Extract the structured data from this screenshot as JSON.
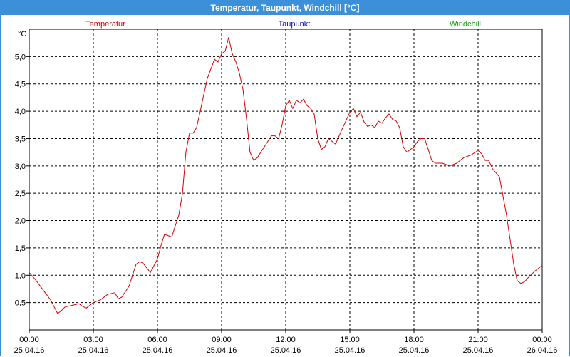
{
  "window": {
    "title": "Temperatur, Taupunkt, Windchill [°C]",
    "title_bar_color": "#3c8fd9"
  },
  "chart_data": {
    "type": "line",
    "title": "Temperatur, Taupunkt, Windchill [°C]",
    "ylabel": "°C",
    "xlabel": "",
    "ylim": [
      0,
      5.5
    ],
    "xlim_hours": [
      0,
      24
    ],
    "grid": true,
    "legend_placement": "top",
    "y_ticks": [
      "0,5",
      "1,0",
      "1,5",
      "2,0",
      "2,5",
      "3,0",
      "3,5",
      "4,0",
      "4,5",
      "5,0"
    ],
    "x_ticks": [
      {
        "time": "00:00",
        "date": "25.04.16"
      },
      {
        "time": "03:00",
        "date": "25.04.16"
      },
      {
        "time": "06:00",
        "date": "25.04.16"
      },
      {
        "time": "09:00",
        "date": "25.04.16"
      },
      {
        "time": "12:00",
        "date": "25.04.16"
      },
      {
        "time": "15:00",
        "date": "25.04.16"
      },
      {
        "time": "18:00",
        "date": "25.04.16"
      },
      {
        "time": "21:00",
        "date": "25.04.16"
      },
      {
        "time": "00:00",
        "date": "26.04.16"
      }
    ],
    "legend": [
      {
        "name": "Temperatur",
        "color": "#d40000"
      },
      {
        "name": "Taupunkt",
        "color": "#1010b0"
      },
      {
        "name": "Windchill",
        "color": "#10a010"
      }
    ],
    "series": [
      {
        "name": "Temperatur",
        "color": "#d40000",
        "x": [
          0,
          0.33,
          0.67,
          1,
          1.17,
          1.33,
          1.5,
          1.67,
          2,
          2.33,
          2.5,
          2.67,
          3,
          3.33,
          3.67,
          4,
          4.17,
          4.33,
          4.67,
          5,
          5.17,
          5.33,
          5.67,
          6,
          6.17,
          6.33,
          6.67,
          6.83,
          7,
          7.17,
          7.33,
          7.5,
          7.67,
          7.83,
          8,
          8.33,
          8.67,
          8.83,
          9,
          9.17,
          9.33,
          9.5,
          9.67,
          9.83,
          10,
          10.17,
          10.33,
          10.5,
          10.67,
          10.83,
          11,
          11.33,
          11.5,
          11.67,
          11.83,
          12,
          12.17,
          12.33,
          12.5,
          12.67,
          12.83,
          13,
          13.17,
          13.33,
          13.5,
          13.67,
          13.83,
          14,
          14.33,
          14.5,
          14.67,
          15,
          15.17,
          15.33,
          15.5,
          15.67,
          15.83,
          16,
          16.17,
          16.33,
          16.5,
          16.67,
          16.83,
          17,
          17.17,
          17.33,
          17.5,
          17.67,
          17.83,
          18,
          18.17,
          18.33,
          18.5,
          18.67,
          18.83,
          19,
          19.33,
          19.67,
          20,
          20.33,
          20.67,
          21,
          21.17,
          21.33,
          21.5,
          21.67,
          22,
          22.33,
          22.67,
          22.83,
          23,
          23.17,
          23.33,
          23.67,
          24
        ],
        "values": [
          1.05,
          0.9,
          0.72,
          0.55,
          0.42,
          0.3,
          0.35,
          0.42,
          0.45,
          0.48,
          0.43,
          0.4,
          0.5,
          0.55,
          0.65,
          0.68,
          0.57,
          0.6,
          0.8,
          1.2,
          1.25,
          1.22,
          1.05,
          1.3,
          1.55,
          1.75,
          1.7,
          1.9,
          2.1,
          2.5,
          3.25,
          3.6,
          3.6,
          3.7,
          4.0,
          4.6,
          4.95,
          4.9,
          5.05,
          5.1,
          5.35,
          5.05,
          4.9,
          4.7,
          4.4,
          3.85,
          3.25,
          3.1,
          3.15,
          3.25,
          3.35,
          3.55,
          3.55,
          3.5,
          3.75,
          4.1,
          4.2,
          4.05,
          4.2,
          4.15,
          4.22,
          4.1,
          4.05,
          3.95,
          3.5,
          3.3,
          3.35,
          3.5,
          3.4,
          3.55,
          3.7,
          3.98,
          4.05,
          3.9,
          3.98,
          3.8,
          3.72,
          3.75,
          3.7,
          3.82,
          3.78,
          3.88,
          3.95,
          3.85,
          3.82,
          3.7,
          3.35,
          3.25,
          3.3,
          3.35,
          3.45,
          3.5,
          3.5,
          3.3,
          3.1,
          3.05,
          3.05,
          3.0,
          3.05,
          3.15,
          3.2,
          3.28,
          3.22,
          3.1,
          3.1,
          2.95,
          2.8,
          2.1,
          1.2,
          0.9,
          0.85,
          0.88,
          0.95,
          1.08,
          1.18
        ]
      }
    ]
  }
}
